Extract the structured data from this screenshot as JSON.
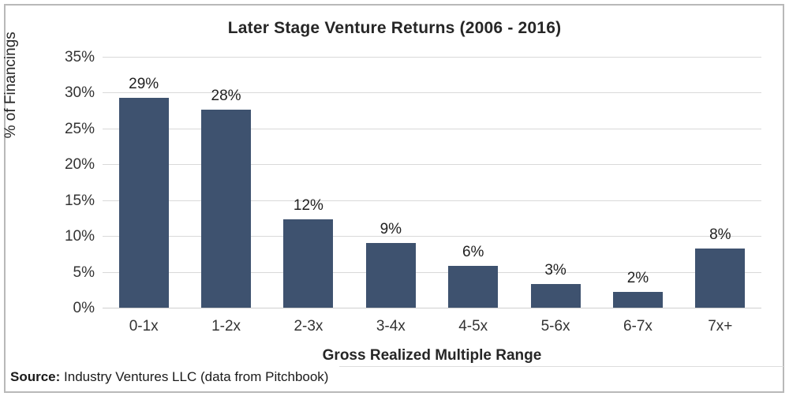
{
  "window": {
    "background": "#ffffff",
    "border_color": "#b9b9b9"
  },
  "chart_data": {
    "type": "bar",
    "title": "Later Stage Venture Returns (2006 - 2016)",
    "xlabel": "Gross Realized Multiple Range",
    "ylabel": "% of Financings",
    "categories": [
      "0-1x",
      "1-2x",
      "2-3x",
      "3-4x",
      "4-5x",
      "5-6x",
      "6-7x",
      "7x+"
    ],
    "values": [
      29,
      28,
      12,
      9,
      6,
      3,
      2,
      8
    ],
    "data_labels": [
      "29%",
      "28%",
      "12%",
      "9%",
      "6%",
      "3%",
      "2%",
      "8%"
    ],
    "bar_heights_pct": [
      29.4,
      27.7,
      12.4,
      9.1,
      6.0,
      3.4,
      2.3,
      8.4
    ],
    "ylim": [
      0,
      35
    ],
    "ytick_step": 5,
    "yticks": [
      "0%",
      "5%",
      "10%",
      "15%",
      "20%",
      "25%",
      "30%",
      "35%"
    ],
    "grid": true,
    "legend": null,
    "bar_color": "#3e526f",
    "gridline_color": "#d9d9d9"
  },
  "source": {
    "prefix": "Source:",
    "text": " Industry Ventures LLC (data from Pitchbook)"
  }
}
